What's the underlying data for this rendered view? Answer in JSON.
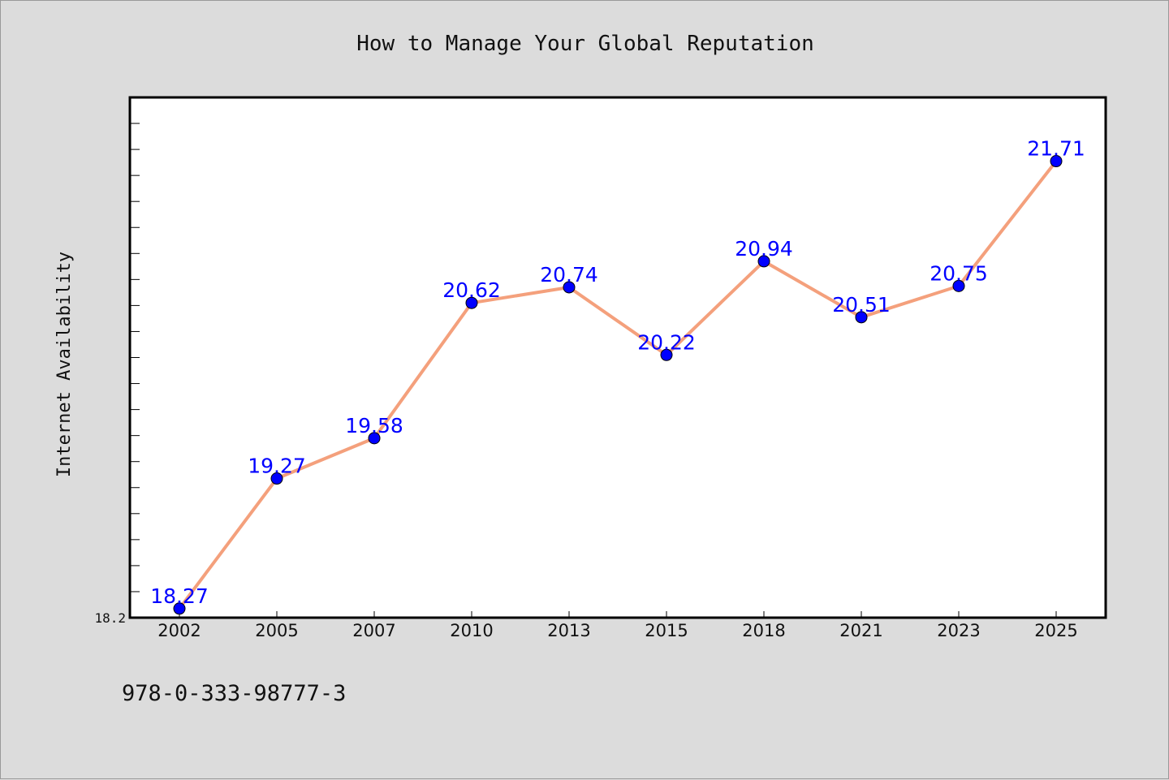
{
  "chart_data": {
    "type": "line",
    "title": "How to Manage Your Global Reputation",
    "xlabel": "",
    "ylabel": "Internet Availability",
    "categories": [
      "2002",
      "2005",
      "2007",
      "2010",
      "2013",
      "2015",
      "2018",
      "2021",
      "2023",
      "2025"
    ],
    "series": [
      {
        "values": [
          18.27,
          19.27,
          19.58,
          20.62,
          20.74,
          20.22,
          20.94,
          20.51,
          20.75,
          21.71
        ],
        "labels": [
          "18.27",
          "19.27",
          "19.58",
          "20.62",
          "20.74",
          "20.22",
          "20.94",
          "20.51",
          "20.75",
          "21.71"
        ],
        "line_color": "#f4a07c",
        "marker_color": "#0000ff"
      }
    ],
    "yticks_labeled": [
      "18.2"
    ],
    "ylim": [
      18.2,
      22.2
    ],
    "grid": false,
    "legend": "none"
  },
  "footer": {
    "isbn": "978-0-333-98777-3"
  },
  "colors": {
    "background": "#dcdcdc",
    "plot_background": "#ffffff",
    "line": "#f4a07c",
    "marker": "#0000ff",
    "data_label": "#0000ff"
  }
}
